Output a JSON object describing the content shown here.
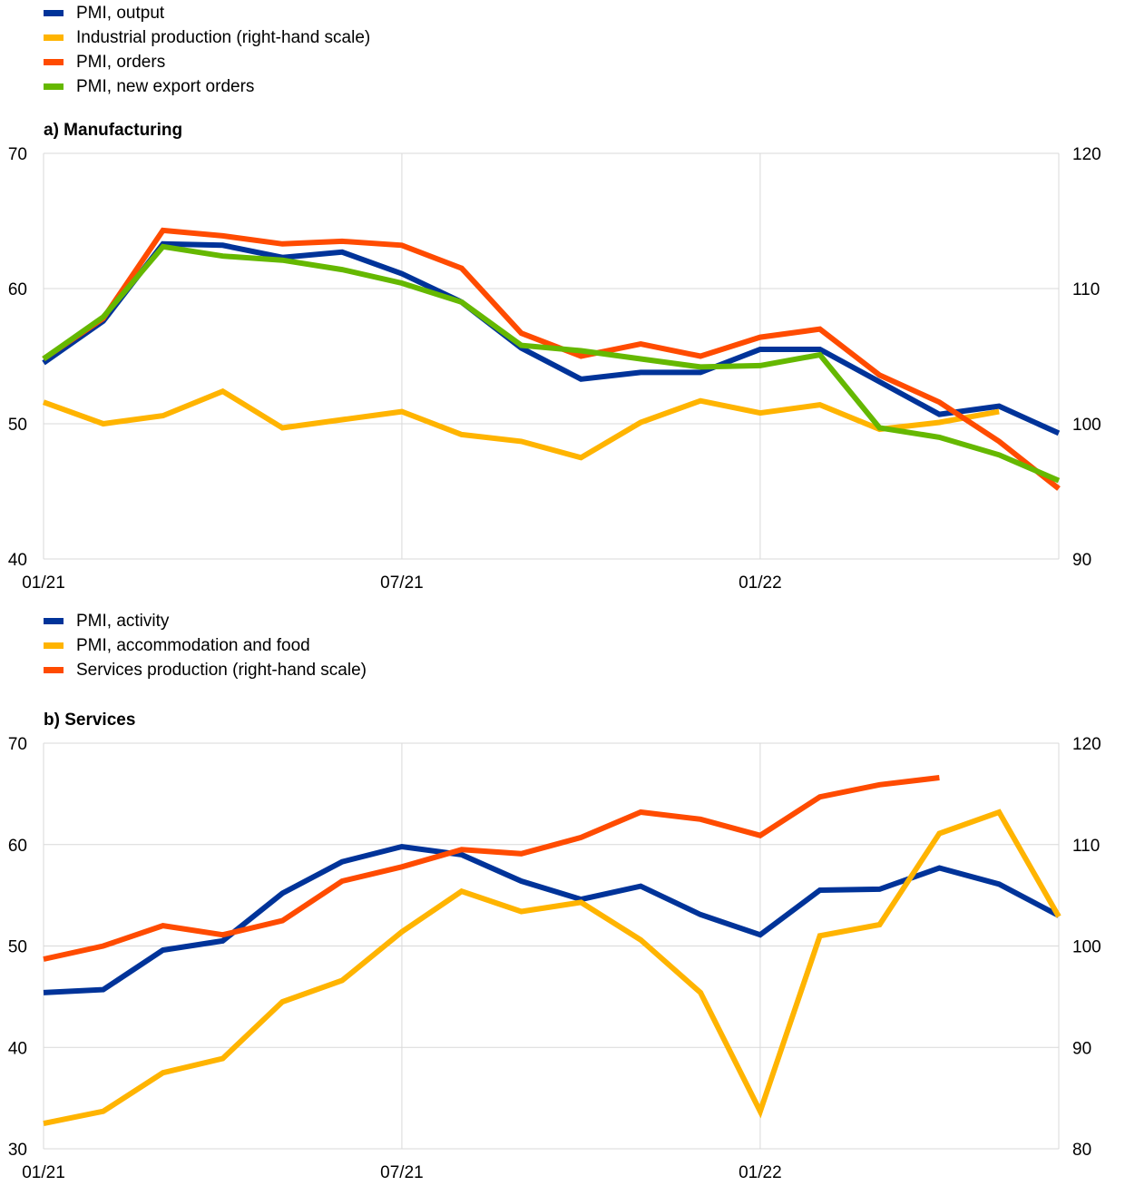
{
  "chart_data": [
    {
      "type": "line",
      "title": "a) Manufacturing",
      "x": [
        "01/21",
        "02/21",
        "03/21",
        "04/21",
        "05/21",
        "06/21",
        "07/21",
        "08/21",
        "09/21",
        "10/21",
        "11/21",
        "12/21",
        "01/22",
        "02/22",
        "03/22",
        "04/22",
        "05/22",
        "06/22"
      ],
      "x_tick_labels": [
        "01/21",
        "07/21",
        "01/22"
      ],
      "y_left": {
        "range": [
          40,
          70
        ],
        "ticks": [
          "40",
          "50",
          "60",
          "70"
        ]
      },
      "y_right": {
        "range": [
          90,
          120
        ],
        "ticks": [
          "90",
          "100",
          "110",
          "120"
        ]
      },
      "grid": true,
      "legend_position": "top-left",
      "series": [
        {
          "name": "PMI, output",
          "color": "#003399",
          "axis": "left",
          "values": [
            54.5,
            57.6,
            63.3,
            63.2,
            62.3,
            62.7,
            61.1,
            59.0,
            55.6,
            53.3,
            53.8,
            53.8,
            55.5,
            55.5,
            53.1,
            50.7,
            51.3,
            49.3
          ]
        },
        {
          "name": "Industrial production (right-hand scale)",
          "color": "#ffb400",
          "axis": "right",
          "values": [
            101.6,
            100.0,
            100.6,
            102.4,
            99.7,
            100.3,
            100.9,
            99.2,
            98.7,
            97.5,
            100.1,
            101.7,
            100.8,
            101.4,
            99.6,
            100.1,
            100.9,
            null
          ]
        },
        {
          "name": "PMI, orders",
          "color": "#ff4b00",
          "axis": "left",
          "values": [
            54.8,
            57.8,
            64.3,
            63.9,
            63.3,
            63.5,
            63.2,
            61.5,
            56.7,
            55.0,
            55.9,
            55.0,
            56.4,
            57.0,
            53.6,
            51.6,
            48.7,
            45.2
          ]
        },
        {
          "name": "PMI, new export orders",
          "color": "#65b800",
          "axis": "left",
          "values": [
            54.8,
            57.9,
            63.1,
            62.4,
            62.1,
            61.4,
            60.4,
            59.0,
            55.8,
            55.4,
            54.8,
            54.2,
            54.3,
            55.1,
            49.7,
            49.0,
            47.7,
            45.8
          ]
        }
      ]
    },
    {
      "type": "line",
      "title": "b) Services",
      "x": [
        "01/21",
        "02/21",
        "03/21",
        "04/21",
        "05/21",
        "06/21",
        "07/21",
        "08/21",
        "09/21",
        "10/21",
        "11/21",
        "12/21",
        "01/22",
        "02/22",
        "03/22",
        "04/22",
        "05/22",
        "06/22"
      ],
      "x_tick_labels": [
        "01/21",
        "07/21",
        "01/22"
      ],
      "y_left": {
        "range": [
          30,
          70
        ],
        "ticks": [
          "30",
          "40",
          "50",
          "60",
          "70"
        ]
      },
      "y_right": {
        "range": [
          80,
          120
        ],
        "ticks": [
          "80",
          "90",
          "100",
          "110",
          "120"
        ]
      },
      "grid": true,
      "legend_position": "top-left",
      "series": [
        {
          "name": "PMI, activity",
          "color": "#003399",
          "axis": "left",
          "values": [
            45.4,
            45.7,
            49.6,
            50.5,
            55.2,
            58.3,
            59.8,
            59.0,
            56.4,
            54.6,
            55.9,
            53.1,
            51.1,
            55.5,
            55.6,
            57.7,
            56.1,
            53.0
          ]
        },
        {
          "name": "PMI, accommodation and food",
          "color": "#ffb400",
          "axis": "left",
          "values": [
            32.5,
            33.7,
            37.5,
            38.9,
            44.5,
            46.6,
            51.4,
            55.4,
            53.4,
            54.3,
            50.6,
            45.4,
            33.7,
            51.0,
            52.1,
            61.1,
            63.2,
            52.9
          ]
        },
        {
          "name": "Services production (right-hand scale)",
          "color": "#ff4b00",
          "axis": "right",
          "values": [
            98.7,
            100.0,
            102.0,
            101.1,
            102.5,
            106.4,
            107.8,
            109.5,
            109.1,
            110.7,
            113.2,
            112.5,
            110.9,
            114.7,
            115.9,
            116.6,
            null,
            null
          ]
        }
      ]
    }
  ]
}
